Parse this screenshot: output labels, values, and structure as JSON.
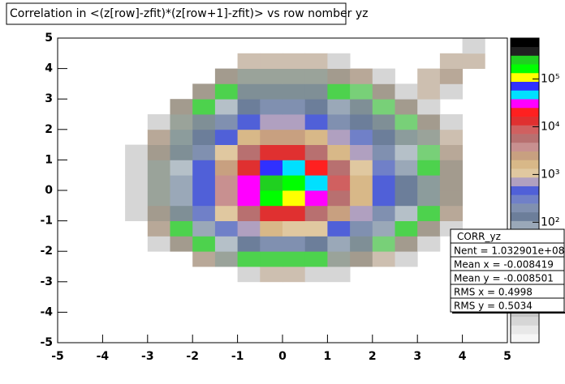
{
  "chart_data": {
    "type": "heatmap",
    "title": "Correlation in <(z[row]-zfit)*(z[row+1]-zfit)> vs row nomber  yz",
    "xbins": [
      -5,
      -4.5,
      -4,
      -3.5,
      -3,
      -2.5,
      -2,
      -1.5,
      -1,
      -0.5,
      0,
      0.5,
      1,
      1.5,
      2,
      2.5,
      3,
      3.5,
      4,
      4.5,
      5
    ],
    "ybins": [
      -5,
      -4.5,
      -4,
      -3.5,
      -3,
      -2.5,
      -2,
      -1.5,
      -1,
      -0.5,
      0,
      0.5,
      1,
      1.5,
      2,
      2.5,
      3,
      3.5,
      4,
      4.5,
      5
    ],
    "z": [
      [
        0,
        0,
        0,
        0,
        0,
        0,
        0,
        0,
        0,
        0,
        0,
        0,
        0,
        0,
        0,
        0,
        0,
        0,
        0,
        0
      ],
      [
        0,
        0,
        0,
        0,
        0,
        0,
        0,
        0,
        0,
        0,
        0,
        0,
        0,
        0,
        0,
        0,
        0,
        0,
        0,
        0
      ],
      [
        0,
        0,
        0,
        0,
        0,
        0,
        0,
        0,
        0,
        0,
        0,
        0,
        0,
        0,
        0,
        0,
        0,
        0,
        0,
        0
      ],
      [
        0,
        0,
        0,
        0,
        0,
        0,
        0,
        0,
        0,
        0,
        0,
        0,
        0,
        0,
        0,
        0,
        0,
        0,
        0,
        0
      ],
      [
        0,
        0,
        0,
        0,
        0,
        0,
        0,
        0,
        1,
        2,
        2,
        1,
        1,
        0,
        0,
        0,
        0,
        0,
        0,
        0
      ],
      [
        0,
        0,
        0,
        0,
        0,
        0,
        3,
        6,
        14,
        18,
        17,
        14,
        8,
        5,
        2,
        1,
        0,
        0,
        0,
        0
      ],
      [
        0,
        0,
        0,
        0,
        1,
        4,
        15,
        50,
        120,
        190,
        180,
        130,
        85,
        35,
        13,
        5,
        1,
        0,
        0,
        0
      ],
      [
        0,
        0,
        0,
        0,
        3,
        15,
        85,
        290,
        820,
        1400,
        1300,
        900,
        440,
        180,
        80,
        18,
        5,
        1,
        0,
        0
      ],
      [
        0,
        0,
        0,
        1,
        5,
        45,
        250,
        1300,
        6300,
        16000,
        15000,
        7000,
        2300,
        680,
        210,
        57,
        14,
        3,
        0,
        0
      ],
      [
        0,
        0,
        0,
        1,
        8,
        85,
        470,
        3300,
        30000,
        180000,
        130000,
        36000,
        7000,
        1600,
        400,
        110,
        22,
        5,
        0,
        0
      ],
      [
        0,
        0,
        0,
        1,
        8,
        90,
        500,
        3600,
        36000,
        300000,
        190000,
        40000,
        7500,
        1700,
        420,
        110,
        22,
        5,
        0,
        0
      ],
      [
        0,
        0,
        0,
        1,
        7,
        65,
        390,
        2500,
        16000,
        60000,
        48000,
        19000,
        4800,
        1100,
        320,
        95,
        18,
        4,
        0,
        0
      ],
      [
        0,
        0,
        0,
        1,
        5,
        40,
        230,
        1100,
        5300,
        12000,
        11000,
        5800,
        1900,
        590,
        200,
        52,
        13,
        3,
        0,
        0
      ],
      [
        0,
        0,
        0,
        0,
        3,
        22,
        120,
        470,
        1500,
        3000,
        2800,
        1600,
        700,
        300,
        110,
        30,
        6,
        2,
        0,
        0
      ],
      [
        0,
        0,
        0,
        0,
        1,
        8,
        45,
        190,
        450,
        700,
        650,
        470,
        230,
        110,
        40,
        12,
        4,
        1,
        0,
        0
      ],
      [
        0,
        0,
        0,
        0,
        0,
        4,
        15,
        50,
        120,
        190,
        180,
        130,
        85,
        35,
        13,
        5,
        1,
        0,
        0,
        0
      ],
      [
        0,
        0,
        0,
        0,
        0,
        0,
        5,
        15,
        35,
        45,
        43,
        35,
        18,
        9,
        4,
        1,
        2,
        1,
        0,
        0
      ],
      [
        0,
        0,
        0,
        0,
        0,
        0,
        0,
        4,
        6,
        7,
        7,
        6,
        5,
        3,
        1,
        0,
        2,
        3,
        0,
        0
      ],
      [
        0,
        0,
        0,
        0,
        0,
        0,
        0,
        0,
        2,
        2,
        2,
        2,
        1,
        0,
        0,
        0,
        0,
        2,
        2,
        0
      ],
      [
        0,
        0,
        0,
        0,
        0,
        0,
        0,
        0,
        0,
        0,
        0,
        0,
        0,
        0,
        0,
        0,
        0,
        0,
        1,
        0
      ]
    ],
    "xlim": [
      -5,
      5
    ],
    "ylim": [
      -5,
      5
    ],
    "xticks": [
      -5,
      -4,
      -3,
      -2,
      -1,
      0,
      1,
      2,
      3,
      4,
      5
    ],
    "yticks": [
      -5,
      -4,
      -3,
      -2,
      -1,
      0,
      1,
      2,
      3,
      4,
      5
    ],
    "log_z": true,
    "zlim": [
      0.3,
      720000
    ],
    "zticks": [
      {
        "value": 100,
        "label": "10²"
      },
      {
        "value": 1000,
        "label": "10³"
      },
      {
        "value": 10000,
        "label": "10⁴"
      },
      {
        "value": 100000,
        "label": "10⁵"
      }
    ],
    "palette": [
      "#f6f6f6",
      "#e8e8e8",
      "#d6d6d6",
      "#c4c4c4",
      "#cdbfb0",
      "#b8a898",
      "#a39b8e",
      "#9aa39a",
      "#78d078",
      "#4dd24d",
      "#8c9c9c",
      "#7f8f96",
      "#b5c0c8",
      "#9aa8b8",
      "#6c7e9a",
      "#8090b0",
      "#7080c8",
      "#5060d8",
      "#b0a0c0",
      "#e0c8a0",
      "#d8b888",
      "#c8a080",
      "#c89090",
      "#b87070",
      "#d06060",
      "#e03030",
      "#ff2020",
      "#ff00ff",
      "#00e0ff",
      "#3030ff",
      "#ffff00",
      "#00ff00",
      "#20d020",
      "#202020",
      "#000000"
    ],
    "stats": {
      "title": "CORR_yz",
      "entries": [
        {
          "name": "Nent",
          "value": "1.032901e+08"
        },
        {
          "name": "Mean x",
          "value": "-0.008419"
        },
        {
          "name": "Mean y",
          "value": "-0.008501"
        },
        {
          "name": "RMS x",
          "value": "0.4998"
        },
        {
          "name": "RMS y",
          "value": "0.5034"
        }
      ]
    }
  }
}
